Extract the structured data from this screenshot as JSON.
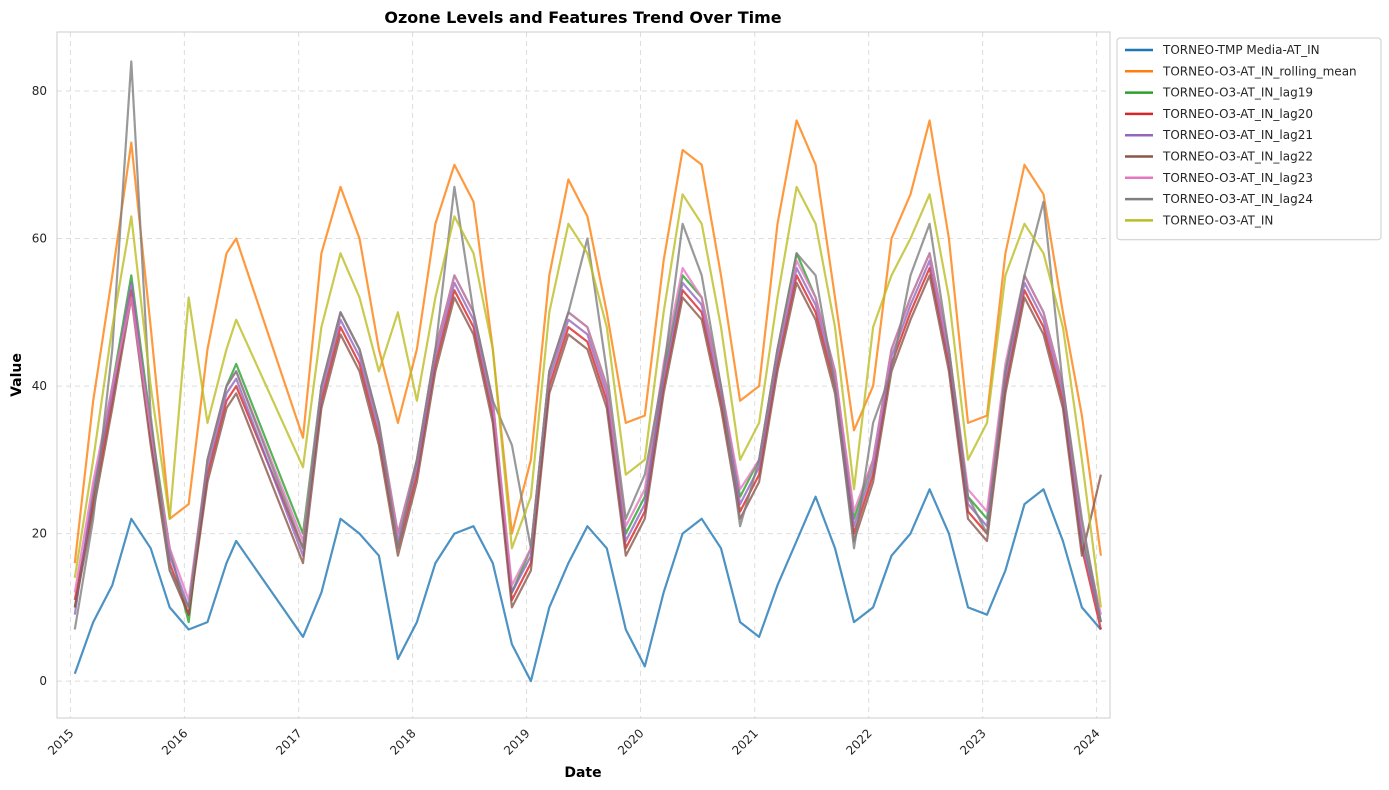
{
  "chart_data": {
    "type": "line",
    "title": "Ozone Levels and Features Trend Over Time",
    "xlabel": "Date",
    "ylabel": "Value",
    "xlim": [
      "2014-11-19",
      "2024-02-13"
    ],
    "ylim": [
      -5,
      88
    ],
    "x_ticks": [
      "2015",
      "2016",
      "2017",
      "2018",
      "2019",
      "2020",
      "2021",
      "2022",
      "2023",
      "2024"
    ],
    "y_ticks": [
      0,
      20,
      40,
      60,
      80
    ],
    "grid": true,
    "legend_position": "outside-top-right",
    "x": [
      "2015-01",
      "2015-03",
      "2015-05",
      "2015-07",
      "2015-09",
      "2015-11",
      "2016-01",
      "2016-03",
      "2016-05",
      "2016-06",
      "2017-01",
      "2017-03",
      "2017-05",
      "2017-07",
      "2017-09",
      "2017-11",
      "2018-01",
      "2018-03",
      "2018-05",
      "2018-07",
      "2018-09",
      "2018-11",
      "2019-01",
      "2019-03",
      "2019-05",
      "2019-07",
      "2019-09",
      "2019-11",
      "2020-01",
      "2020-03",
      "2020-05",
      "2020-07",
      "2020-09",
      "2020-11",
      "2021-01",
      "2021-03",
      "2021-05",
      "2021-07",
      "2021-09",
      "2021-11",
      "2022-01",
      "2022-03",
      "2022-05",
      "2022-07",
      "2022-09",
      "2022-11",
      "2023-01",
      "2023-03",
      "2023-05",
      "2023-07",
      "2023-09",
      "2023-11",
      "2024-01"
    ],
    "series": [
      {
        "name": "TORNEO-TMP Media-AT_IN",
        "color": "#1f77b4",
        "values": [
          1,
          8,
          13,
          22,
          18,
          10,
          7,
          8,
          16,
          19,
          6,
          12,
          22,
          20,
          17,
          3,
          8,
          16,
          20,
          21,
          16,
          5,
          0,
          10,
          16,
          21,
          18,
          7,
          2,
          12,
          20,
          22,
          18,
          8,
          6,
          13,
          19,
          25,
          18,
          8,
          10,
          17,
          20,
          26,
          20,
          10,
          9,
          15,
          24,
          26,
          19,
          10,
          7
        ]
      },
      {
        "name": "TORNEO-O3-AT_IN_rolling_mean",
        "color": "#ff7f0e",
        "values": [
          16,
          38,
          55,
          73,
          48,
          22,
          24,
          45,
          58,
          60,
          33,
          58,
          67,
          60,
          45,
          35,
          45,
          62,
          70,
          65,
          45,
          20,
          30,
          55,
          68,
          63,
          50,
          35,
          36,
          57,
          72,
          70,
          55,
          38,
          40,
          62,
          76,
          70,
          52,
          34,
          40,
          60,
          66,
          76,
          60,
          35,
          36,
          58,
          70,
          66,
          50,
          36,
          17
        ]
      },
      {
        "name": "TORNEO-O3-AT_IN_lag19",
        "color": "#2ca02c",
        "values": [
          10,
          25,
          40,
          55,
          35,
          18,
          8,
          30,
          40,
          43,
          20,
          40,
          50,
          45,
          35,
          20,
          30,
          45,
          55,
          50,
          38,
          12,
          18,
          42,
          50,
          48,
          40,
          20,
          25,
          42,
          55,
          52,
          40,
          25,
          30,
          45,
          58,
          52,
          42,
          22,
          30,
          45,
          52,
          58,
          45,
          25,
          22,
          42,
          55,
          50,
          40,
          20,
          8
        ]
      },
      {
        "name": "TORNEO-O3-AT_IN_lag20",
        "color": "#d62728",
        "values": [
          11,
          24,
          38,
          53,
          33,
          16,
          9,
          28,
          38,
          40,
          18,
          38,
          48,
          43,
          33,
          18,
          28,
          43,
          53,
          48,
          36,
          11,
          16,
          40,
          48,
          46,
          38,
          18,
          23,
          40,
          53,
          50,
          38,
          23,
          28,
          43,
          55,
          50,
          40,
          20,
          28,
          43,
          50,
          56,
          43,
          23,
          20,
          40,
          53,
          48,
          38,
          18,
          7
        ]
      },
      {
        "name": "TORNEO-O3-AT_IN_lag21",
        "color": "#9467bd",
        "values": [
          9,
          26,
          39,
          54,
          34,
          17,
          10,
          29,
          39,
          41,
          17,
          39,
          49,
          44,
          34,
          19,
          29,
          44,
          54,
          49,
          37,
          12,
          17,
          41,
          49,
          47,
          39,
          19,
          24,
          41,
          54,
          51,
          39,
          24,
          29,
          44,
          56,
          51,
          41,
          21,
          29,
          44,
          51,
          57,
          44,
          24,
          21,
          41,
          54,
          49,
          39,
          19,
          8
        ]
      },
      {
        "name": "TORNEO-O3-AT_IN_lag22",
        "color": "#8c564b",
        "values": [
          10,
          23,
          37,
          52,
          32,
          15,
          9,
          27,
          37,
          39,
          16,
          37,
          47,
          42,
          32,
          17,
          27,
          42,
          52,
          47,
          35,
          10,
          15,
          39,
          47,
          45,
          37,
          17,
          22,
          39,
          52,
          49,
          37,
          22,
          27,
          42,
          54,
          49,
          39,
          19,
          27,
          42,
          49,
          55,
          42,
          22,
          19,
          39,
          52,
          47,
          37,
          17,
          28
        ]
      },
      {
        "name": "TORNEO-O3-AT_IN_lag23",
        "color": "#e377c2",
        "values": [
          12,
          27,
          40,
          52,
          34,
          18,
          11,
          30,
          40,
          42,
          19,
          40,
          50,
          45,
          35,
          20,
          30,
          45,
          55,
          50,
          38,
          13,
          18,
          42,
          50,
          48,
          40,
          21,
          26,
          43,
          56,
          52,
          40,
          26,
          30,
          45,
          57,
          52,
          42,
          23,
          30,
          45,
          52,
          58,
          45,
          26,
          23,
          43,
          55,
          50,
          40,
          21,
          9
        ]
      },
      {
        "name": "TORNEO-O3-AT_IN_lag24",
        "color": "#7f7f7f",
        "values": [
          7,
          22,
          45,
          84,
          36,
          15,
          10,
          30,
          40,
          42,
          18,
          40,
          50,
          45,
          35,
          18,
          30,
          45,
          67,
          50,
          38,
          32,
          18,
          42,
          50,
          60,
          42,
          22,
          28,
          42,
          62,
          55,
          40,
          21,
          30,
          45,
          58,
          55,
          40,
          18,
          35,
          42,
          55,
          62,
          45,
          25,
          20,
          42,
          55,
          65,
          40,
          22,
          8
        ]
      },
      {
        "name": "TORNEO-O3-AT_IN",
        "color": "#bcbd22",
        "values": [
          14,
          30,
          48,
          63,
          40,
          22,
          52,
          35,
          45,
          49,
          29,
          48,
          58,
          52,
          42,
          50,
          38,
          52,
          63,
          58,
          45,
          18,
          25,
          50,
          62,
          58,
          48,
          28,
          30,
          50,
          66,
          62,
          48,
          30,
          35,
          52,
          67,
          62,
          48,
          26,
          48,
          55,
          60,
          66,
          52,
          30,
          35,
          55,
          62,
          58,
          48,
          30,
          10
        ]
      }
    ]
  }
}
